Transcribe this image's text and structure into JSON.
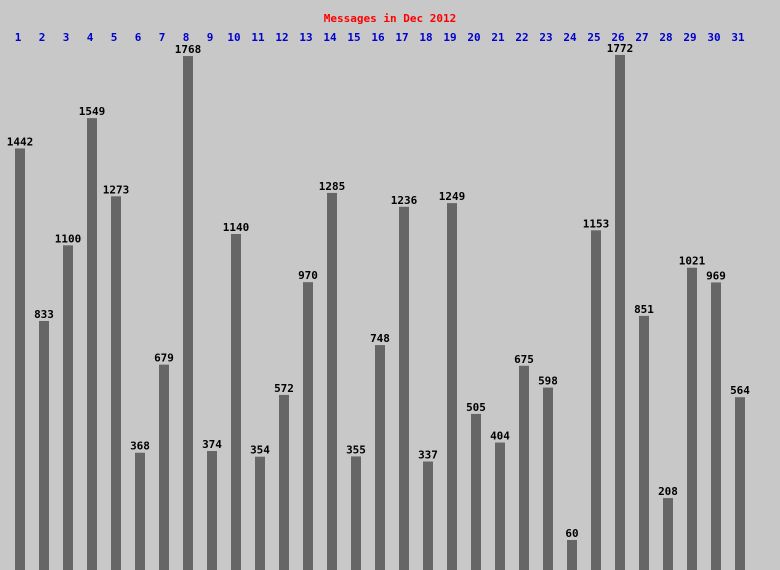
{
  "chart_data": {
    "type": "bar",
    "title": "Messages in Dec 2012",
    "categories": [
      "1",
      "2",
      "3",
      "4",
      "5",
      "6",
      "7",
      "8",
      "9",
      "10",
      "11",
      "12",
      "13",
      "14",
      "15",
      "16",
      "17",
      "18",
      "19",
      "20",
      "21",
      "22",
      "23",
      "24",
      "25",
      "26",
      "27",
      "28",
      "29",
      "30",
      "31"
    ],
    "values": [
      1442,
      833,
      1100,
      1549,
      1273,
      368,
      679,
      1768,
      374,
      1140,
      354,
      572,
      970,
      1285,
      355,
      748,
      1236,
      337,
      1249,
      505,
      404,
      675,
      598,
      60,
      1153,
      1772,
      851,
      208,
      1021,
      969,
      564
    ],
    "color": "#666666",
    "title_color": "#ff0000",
    "category_color": "#0000cc",
    "label_color": "#000000",
    "ylim": [
      0,
      1800
    ]
  }
}
